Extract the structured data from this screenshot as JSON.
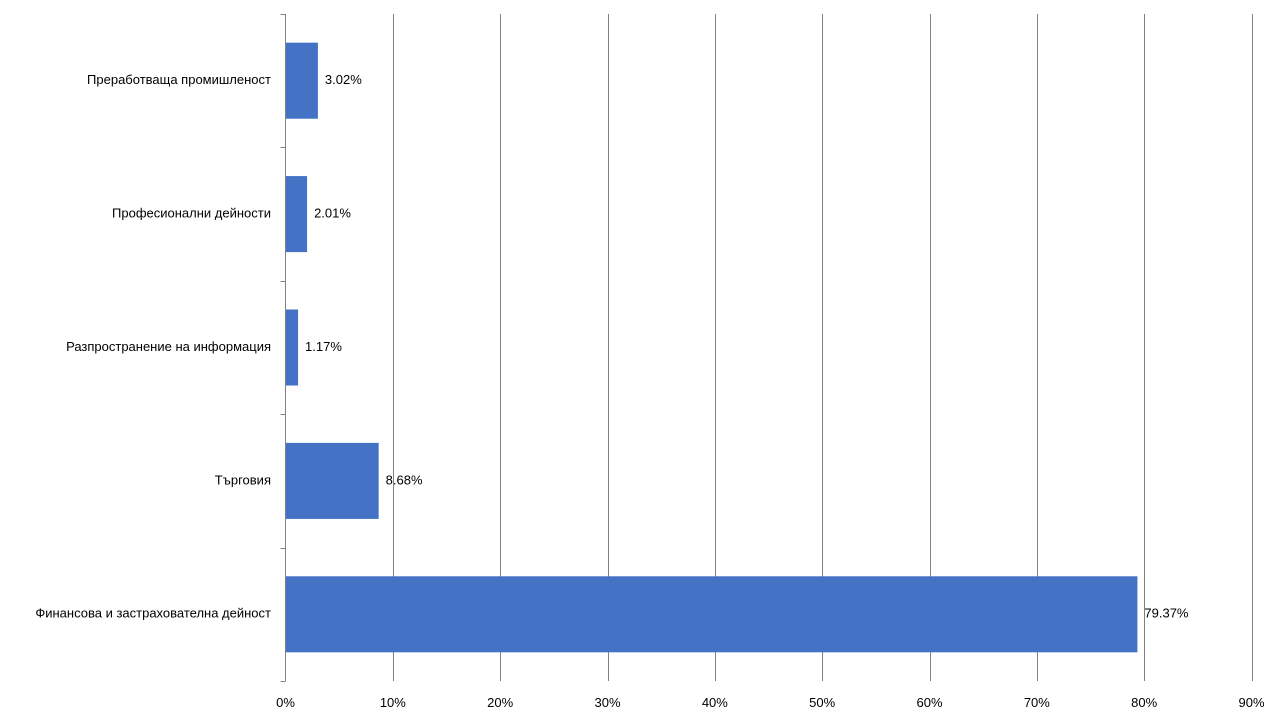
{
  "chart_data": {
    "type": "bar",
    "orientation": "horizontal",
    "categories": [
      "Преработваща промишленост",
      "Професионални дейности",
      "Разпространение на информация",
      "Търговия",
      "Финансова и застрахователна дейност"
    ],
    "values": [
      3.02,
      2.01,
      1.17,
      8.68,
      79.37
    ],
    "data_labels": [
      "3.02%",
      "2.01%",
      "1.17%",
      "8.68%",
      "79.37%"
    ],
    "x_ticks": [
      "0%",
      "10%",
      "20%",
      "30%",
      "40%",
      "50%",
      "60%",
      "70%",
      "80%",
      "90%"
    ],
    "xlim": [
      0,
      90
    ],
    "grid": "vertical",
    "legend": "none",
    "title": "",
    "xlabel": "",
    "ylabel": "",
    "bar_color": "#4472C4",
    "grid_color": "#808080",
    "axis_color": "#808080"
  }
}
